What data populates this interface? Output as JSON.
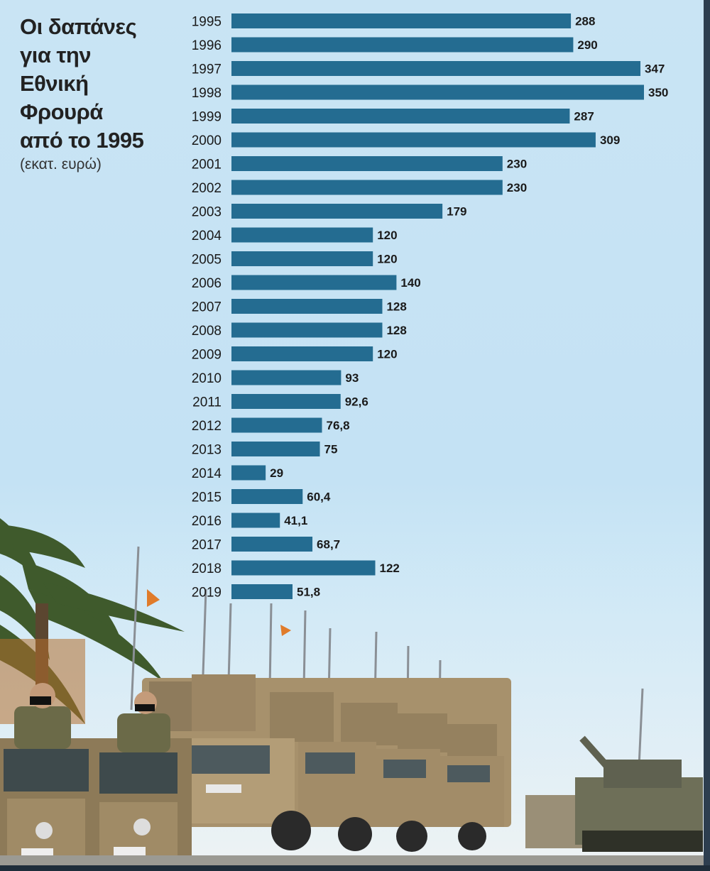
{
  "header": {
    "title": "Οι δαπάνες\nγια την\nΕθνική\nΦρουρά\nαπό το 1995",
    "subtitle": "(εκατ. ευρώ)"
  },
  "colors": {
    "bar": "#246c91",
    "background": "#c6e3f4"
  },
  "chart_data": {
    "type": "bar",
    "orientation": "horizontal",
    "title": "Οι δαπάνες για την Εθνική Φρουρά από το 1995",
    "subtitle": "(εκατ. ευρώ)",
    "categories": [
      "1995",
      "1996",
      "1997",
      "1998",
      "1999",
      "2000",
      "2001",
      "2002",
      "2003",
      "2004",
      "2005",
      "2006",
      "2007",
      "2008",
      "2009",
      "2010",
      "2011",
      "2012",
      "2013",
      "2014",
      "2015",
      "2016",
      "2017",
      "2018",
      "2019"
    ],
    "values": [
      288,
      290,
      347,
      350,
      287,
      309,
      230,
      230,
      179,
      120,
      120,
      140,
      128,
      128,
      120,
      93,
      92.6,
      76.8,
      75,
      29,
      60.4,
      41.1,
      68.7,
      122,
      51.8
    ],
    "value_labels": [
      "288",
      "290",
      "347",
      "350",
      "287",
      "309",
      "230",
      "230",
      "179",
      "120",
      "120",
      "140",
      "128",
      "128",
      "120",
      "93",
      "92,6",
      "76,8",
      "75",
      "29",
      "60,4",
      "41,1",
      "68,7",
      "122",
      "51,8"
    ],
    "xlim": [
      0,
      350
    ],
    "xlabel": "",
    "ylabel": "",
    "grid": false,
    "legend": "none"
  }
}
